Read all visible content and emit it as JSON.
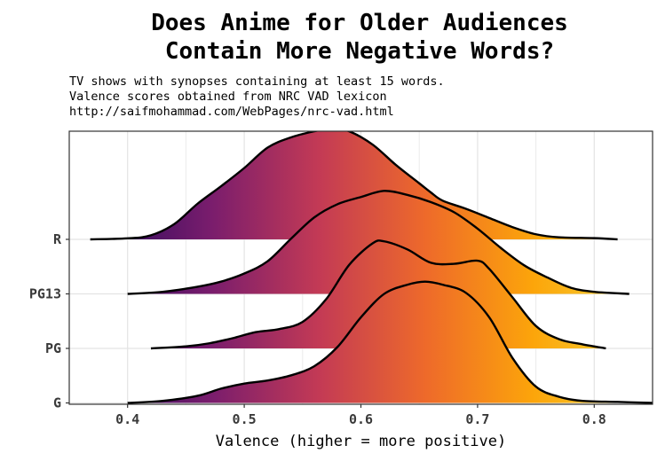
{
  "chart_data": {
    "type": "ridgeline-density",
    "title_lines": [
      "Does Anime for Older Audiences",
      "Contain More Negative Words?"
    ],
    "subtitle_lines": [
      "TV shows with synopses containing at least 15 words.",
      "Valence scores obtained from NRC VAD lexicon",
      "http://saifmohammad.com/WebPages/nrc-vad.html"
    ],
    "xlabel": "Valence (higher = more positive)",
    "xlim": [
      0.35,
      0.85
    ],
    "x_ticks": [
      0.4,
      0.5,
      0.6,
      0.7,
      0.8
    ],
    "x_tick_labels": [
      "0.4",
      "0.5",
      "0.6",
      "0.7",
      "0.8"
    ],
    "categories": [
      "G",
      "PG",
      "PG13",
      "R"
    ],
    "grid": true,
    "fill": "gradient along x (inferno palette)",
    "gradient_colors": [
      "#2c0a5e",
      "#7a1d6d",
      "#c33a55",
      "#ee6a2a",
      "#fca50a",
      "#f5d63a"
    ],
    "line_color": "#000000",
    "series": [
      {
        "name": "R",
        "x": [
          0.368,
          0.4,
          0.42,
          0.44,
          0.46,
          0.48,
          0.5,
          0.52,
          0.54,
          0.56,
          0.575,
          0.59,
          0.61,
          0.63,
          0.65,
          0.66,
          0.67,
          0.69,
          0.71,
          0.73,
          0.75,
          0.77,
          0.8,
          0.82
        ],
        "density": [
          0.0,
          0.01,
          0.04,
          0.15,
          0.35,
          0.52,
          0.7,
          0.9,
          1.0,
          1.06,
          1.09,
          1.06,
          0.93,
          0.73,
          0.55,
          0.46,
          0.38,
          0.3,
          0.21,
          0.12,
          0.05,
          0.02,
          0.012,
          0.0
        ]
      },
      {
        "name": "PG13",
        "x": [
          0.4,
          0.43,
          0.46,
          0.48,
          0.5,
          0.52,
          0.54,
          0.56,
          0.58,
          0.6,
          0.62,
          0.64,
          0.66,
          0.68,
          0.7,
          0.72,
          0.74,
          0.76,
          0.78,
          0.8,
          0.83
        ],
        "density": [
          0.0,
          0.02,
          0.07,
          0.12,
          0.2,
          0.32,
          0.54,
          0.75,
          0.88,
          0.95,
          1.01,
          0.97,
          0.9,
          0.8,
          0.64,
          0.45,
          0.28,
          0.16,
          0.06,
          0.02,
          0.0
        ]
      },
      {
        "name": "PG",
        "x": [
          0.42,
          0.45,
          0.47,
          0.49,
          0.51,
          0.53,
          0.55,
          0.57,
          0.59,
          0.61,
          0.62,
          0.64,
          0.66,
          0.68,
          0.7,
          0.71,
          0.73,
          0.75,
          0.77,
          0.79,
          0.81
        ],
        "density": [
          0.0,
          0.02,
          0.05,
          0.1,
          0.16,
          0.19,
          0.26,
          0.48,
          0.82,
          1.03,
          1.05,
          0.97,
          0.84,
          0.83,
          0.86,
          0.78,
          0.5,
          0.22,
          0.09,
          0.04,
          0.0
        ]
      },
      {
        "name": "G",
        "x": [
          0.4,
          0.43,
          0.46,
          0.48,
          0.5,
          0.52,
          0.54,
          0.56,
          0.58,
          0.6,
          0.62,
          0.64,
          0.655,
          0.67,
          0.69,
          0.71,
          0.73,
          0.75,
          0.77,
          0.79,
          0.82,
          0.85
        ],
        "density": [
          0.0,
          0.02,
          0.07,
          0.14,
          0.19,
          0.22,
          0.27,
          0.36,
          0.55,
          0.84,
          1.07,
          1.16,
          1.19,
          1.16,
          1.08,
          0.84,
          0.44,
          0.16,
          0.06,
          0.02,
          0.01,
          0.0
        ]
      }
    ]
  }
}
